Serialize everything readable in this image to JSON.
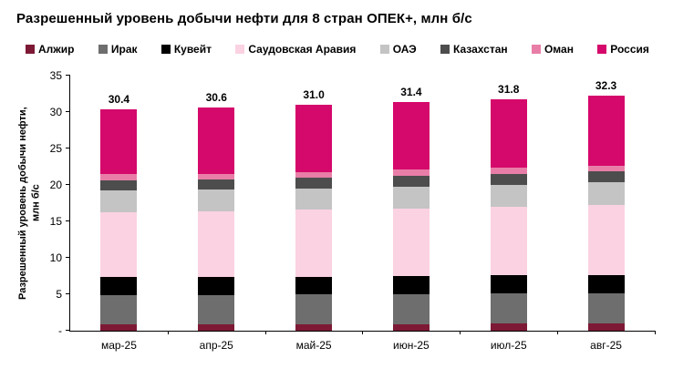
{
  "title": "Разрешенный уровень добычи нефти для 8 стран ОПЕК+, млн б/с",
  "chart_data": {
    "type": "bar",
    "stacked": true,
    "title": "Разрешенный уровень добычи нефти для 8 стран ОПЕК+, млн б/с",
    "ylabel": "Разрешенный уровень добычи нефти,\nмлн б/с",
    "ylim": [
      0,
      35
    ],
    "grid": false,
    "legend_position": "top",
    "yticks": [
      {
        "value": 35,
        "label": "35"
      },
      {
        "value": 30,
        "label": "30"
      },
      {
        "value": 25,
        "label": "25"
      },
      {
        "value": 20,
        "label": "20"
      },
      {
        "value": 15,
        "label": "15"
      },
      {
        "value": 10,
        "label": "10"
      },
      {
        "value": 5,
        "label": "5"
      },
      {
        "value": 0,
        "label": "-"
      }
    ],
    "categories": [
      "мар-25",
      "апр-25",
      "май-25",
      "июн-25",
      "июл-25",
      "авг-25"
    ],
    "totals": [
      "30.4",
      "30.6",
      "31.0",
      "31.4",
      "31.8",
      "32.3"
    ],
    "series": [
      {
        "name": "Алжир",
        "color": "#7D1935",
        "values": [
          0.91,
          0.91,
          0.92,
          0.93,
          0.94,
          0.95
        ]
      },
      {
        "name": "Ирак",
        "color": "#6E6E6E",
        "values": [
          4.01,
          4.02,
          4.06,
          4.1,
          4.14,
          4.19
        ]
      },
      {
        "name": "Кувейт",
        "color": "#000000",
        "values": [
          2.41,
          2.42,
          2.44,
          2.47,
          2.49,
          2.52
        ]
      },
      {
        "name": "Саудовская Аравия",
        "color": "#FBD2E2",
        "values": [
          8.98,
          9.04,
          9.17,
          9.31,
          9.45,
          9.6
        ]
      },
      {
        "name": "ОАЭ",
        "color": "#C4C4C4",
        "values": [
          2.91,
          2.93,
          2.96,
          2.99,
          3.02,
          3.06
        ]
      },
      {
        "name": "Казахстан",
        "color": "#4D4D4D",
        "values": [
          1.47,
          1.47,
          1.49,
          1.5,
          1.52,
          1.54
        ]
      },
      {
        "name": "Оман",
        "color": "#E87EA7",
        "values": [
          0.76,
          0.76,
          0.77,
          0.78,
          0.78,
          0.79
        ]
      },
      {
        "name": "Россия",
        "color": "#D5086B",
        "values": [
          8.98,
          9.04,
          9.17,
          9.31,
          9.45,
          9.62
        ]
      }
    ]
  }
}
